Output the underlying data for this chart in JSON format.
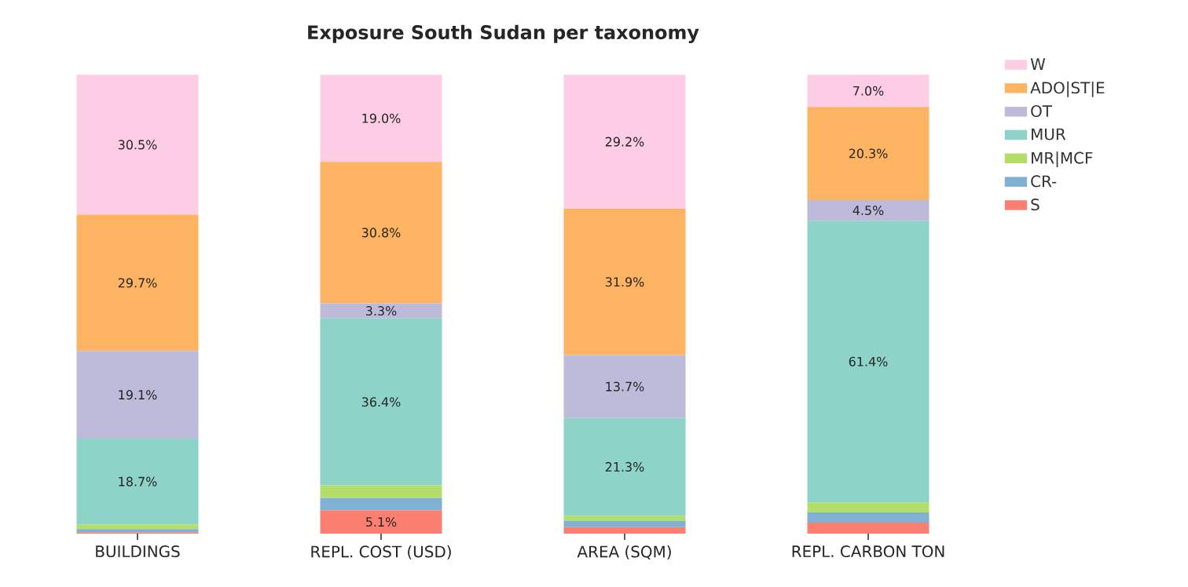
{
  "chart_data": {
    "type": "bar",
    "title": "Exposure South Sudan per taxonomy",
    "stacked": true,
    "legend": "top right",
    "categories": [
      "BUILDINGS",
      "REPL. COST (USD)",
      "AREA (SQM)",
      "REPL. CARBON TON"
    ],
    "series": [
      {
        "name": "S",
        "color": "#fb8072",
        "values": [
          0.3,
          5.1,
          1.4,
          2.4
        ],
        "value_labels": [
          null,
          "5.1%",
          null,
          null
        ]
      },
      {
        "name": "CR-",
        "color": "#80b1d3",
        "values": [
          0.7,
          2.7,
          1.4,
          2.2
        ],
        "value_labels": [
          null,
          null,
          null,
          null
        ]
      },
      {
        "name": "MR|MCF",
        "color": "#b3de69",
        "values": [
          1.0,
          2.7,
          1.1,
          2.2
        ],
        "value_labels": [
          null,
          null,
          null,
          null
        ]
      },
      {
        "name": "MUR",
        "color": "#8dd3c7",
        "values": [
          18.7,
          36.4,
          21.3,
          61.4
        ],
        "value_labels": [
          "18.7%",
          "36.4%",
          "21.3%",
          "61.4%"
        ]
      },
      {
        "name": "OT",
        "color": "#bebada",
        "values": [
          19.1,
          3.3,
          13.7,
          4.5
        ],
        "value_labels": [
          "19.1%",
          "3.3%",
          "13.7%",
          "4.5%"
        ]
      },
      {
        "name": "ADO|ST|E",
        "color": "#fdb462",
        "values": [
          29.7,
          30.8,
          31.9,
          20.3
        ],
        "value_labels": [
          "29.7%",
          "30.8%",
          "31.9%",
          "20.3%"
        ]
      },
      {
        "name": "W",
        "color": "#fccde5",
        "values": [
          30.5,
          19.0,
          29.2,
          7.0
        ],
        "value_labels": [
          "30.5%",
          "19.0%",
          "29.2%",
          "7.0%"
        ]
      }
    ]
  }
}
